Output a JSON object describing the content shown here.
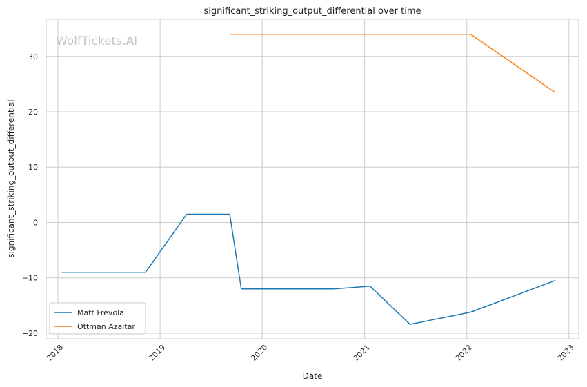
{
  "chart_data": {
    "type": "line",
    "title": "significant_striking_output_differential over time",
    "xlabel": "Date",
    "ylabel": "significant_striking_output_differential",
    "watermark": "WolfTickets.AI",
    "x_ticks": [
      "2018",
      "2019",
      "2020",
      "2021",
      "2022",
      "2023"
    ],
    "y_ticks": [
      -20,
      -10,
      0,
      10,
      20,
      30
    ],
    "xlim": [
      "2017-11-20",
      "2023-02-05"
    ],
    "ylim": [
      -21,
      36.7
    ],
    "grid": true,
    "legend_position": "lower-left",
    "series": [
      {
        "name": "Matt Frevola",
        "color": "#1f77b4",
        "points": [
          [
            "2018-01-15",
            -9.0
          ],
          [
            "2018-11-10",
            -9.0
          ],
          [
            "2019-04-06",
            1.5
          ],
          [
            "2019-09-07",
            1.5
          ],
          [
            "2019-10-18",
            -12.0
          ],
          [
            "2020-09-12",
            -12.0
          ],
          [
            "2021-01-20",
            -11.5
          ],
          [
            "2021-06-12",
            -18.4
          ],
          [
            "2022-01-15",
            -16.2
          ],
          [
            "2022-11-12",
            -10.5
          ]
        ]
      },
      {
        "name": "Ottman Azaitar",
        "color": "#ff7f0e",
        "points": [
          [
            "2019-09-07",
            34.0
          ],
          [
            "2022-01-15",
            34.0
          ],
          [
            "2022-11-12",
            23.5
          ]
        ]
      }
    ],
    "error_band": {
      "series": "Matt Frevola",
      "x": "2022-11-12",
      "low": -16.2,
      "high": -4.8
    }
  }
}
